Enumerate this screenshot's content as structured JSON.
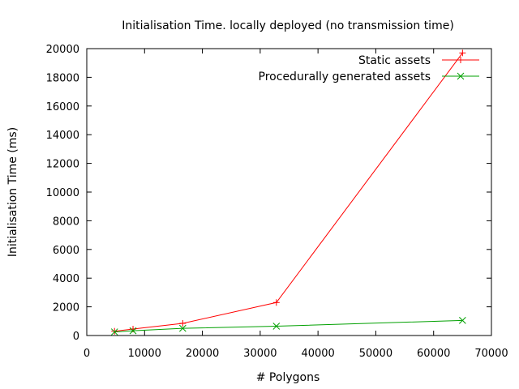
{
  "chart_data": {
    "type": "line",
    "title": "Initialisation Time. locally deployed (no transmission time)",
    "xlabel": "# Polygons",
    "ylabel": "Initialisation Time (ms)",
    "xlim": [
      0,
      70000
    ],
    "ylim": [
      0,
      20000
    ],
    "x_ticks": [
      0,
      10000,
      20000,
      30000,
      40000,
      50000,
      60000,
      70000
    ],
    "y_ticks": [
      0,
      2000,
      4000,
      6000,
      8000,
      10000,
      12000,
      14000,
      16000,
      18000,
      20000
    ],
    "grid": false,
    "legend_position": "top-right",
    "series": [
      {
        "name": "Static assets",
        "color": "#ff0000",
        "marker": "plus",
        "x": [
          4800,
          8000,
          16600,
          32800,
          65000
        ],
        "y": [
          300,
          450,
          850,
          2300,
          19700
        ]
      },
      {
        "name": "Procedurally generated assets",
        "color": "#00a000",
        "marker": "cross",
        "x": [
          4800,
          8000,
          16600,
          32800,
          65000
        ],
        "y": [
          250,
          330,
          500,
          650,
          1050
        ]
      }
    ]
  }
}
